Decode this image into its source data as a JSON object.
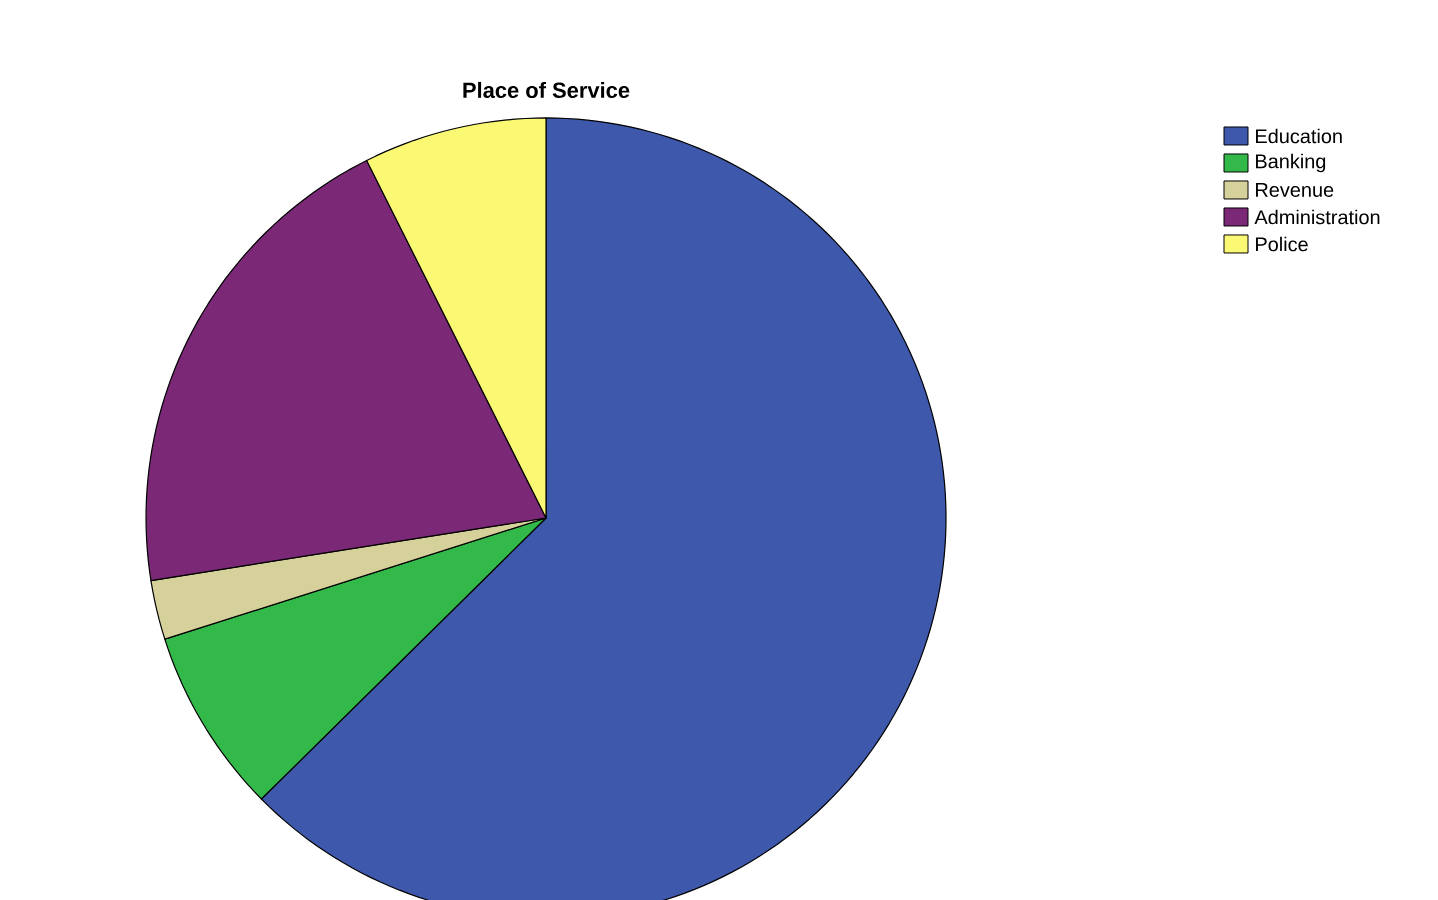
{
  "chart_data": {
    "type": "pie",
    "title": "Place of Service",
    "categories": [
      "Education",
      "Banking",
      "Revenue",
      "Administration",
      "Police"
    ],
    "values": [
      62.6,
      7.5,
      2.4,
      20.1,
      7.4
    ],
    "colors": [
      "#3e58ac",
      "#32b94a",
      "#d6d09a",
      "#7b2877",
      "#fbf874"
    ],
    "legend": "top right"
  }
}
